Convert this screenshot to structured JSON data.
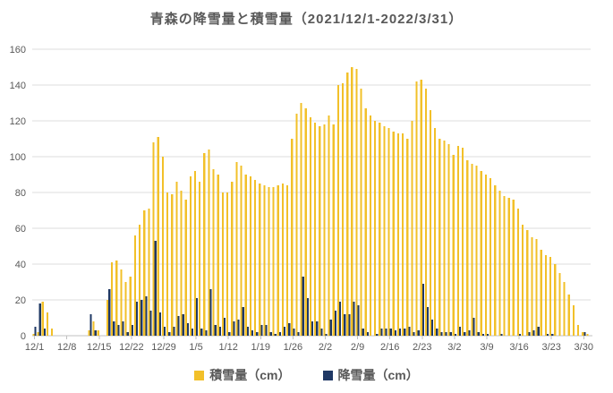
{
  "title": "青森の降雪量と積雪量（2021/12/1-2022/3/31）",
  "colors": {
    "depth": "#F2C029",
    "snowfall": "#1F3864",
    "grid": "#DCDCDC",
    "axis": "#C0C0C0",
    "tick_text": "#595959",
    "title_text": "#595959"
  },
  "legend": {
    "depth_label": "積雪量（cm）",
    "snowfall_label": "降雪量（cm）"
  },
  "chart_data": {
    "type": "bar",
    "title": "青森の降雪量と積雪量（2021/12/1-2022/3/31）",
    "xlabel": "",
    "ylabel": "",
    "ylim": [
      0,
      160
    ],
    "y_ticks": [
      0,
      20,
      40,
      60,
      80,
      100,
      120,
      140,
      160
    ],
    "grid": true,
    "legend_position": "bottom",
    "x_start": "2021/12/1",
    "x_end": "2022/3/31",
    "x_tick_interval_days": 7,
    "x_tick_labels": [
      "12/1",
      "12/8",
      "12/15",
      "12/22",
      "12/29",
      "1/5",
      "1/12",
      "1/19",
      "1/26",
      "2/2",
      "2/9",
      "2/16",
      "2/23",
      "3/2",
      "3/9",
      "3/16",
      "3/23",
      "3/30"
    ],
    "series": [
      {
        "name": "積雪量（cm）",
        "color": "#F2C029",
        "values": [
          1,
          2,
          19,
          13,
          4,
          0,
          0,
          0,
          0,
          0,
          0,
          0,
          3,
          8,
          3,
          0,
          20,
          41,
          42,
          37,
          30,
          33,
          56,
          62,
          70,
          71,
          108,
          111,
          100,
          80,
          79,
          86,
          81,
          76,
          89,
          92,
          86,
          102,
          104,
          93,
          90,
          80,
          80,
          86,
          97,
          95,
          90,
          89,
          87,
          85,
          84,
          83,
          83,
          84,
          85,
          84,
          110,
          124,
          130,
          127,
          122,
          119,
          117,
          118,
          123,
          118,
          140,
          141,
          147,
          150,
          149,
          138,
          127,
          123,
          120,
          119,
          117,
          116,
          114,
          113,
          113,
          110,
          120,
          142,
          143,
          138,
          126,
          116,
          110,
          109,
          107,
          101,
          106,
          105,
          98,
          96,
          95,
          92,
          90,
          88,
          84,
          81,
          78,
          77,
          76,
          71,
          62,
          59,
          55,
          54,
          48,
          45,
          44,
          40,
          35,
          30,
          23,
          17,
          6,
          2,
          1
        ]
      },
      {
        "name": "降雪量（cm）",
        "color": "#1F3864",
        "values": [
          5,
          18,
          4,
          0,
          0,
          0,
          0,
          0,
          0,
          0,
          0,
          0,
          12,
          3,
          0,
          0,
          26,
          8,
          6,
          8,
          2,
          6,
          19,
          20,
          22,
          14,
          53,
          13,
          5,
          2,
          5,
          11,
          12,
          7,
          4,
          21,
          4,
          3,
          26,
          6,
          5,
          10,
          2,
          8,
          9,
          16,
          5,
          3,
          2,
          6,
          6,
          2,
          1,
          2,
          5,
          7,
          4,
          2,
          33,
          21,
          8,
          8,
          4,
          1,
          9,
          14,
          19,
          12,
          12,
          19,
          17,
          4,
          2,
          0,
          1,
          4,
          4,
          4,
          3,
          4,
          4,
          5,
          2,
          3,
          29,
          16,
          9,
          4,
          2,
          2,
          2,
          1,
          5,
          2,
          3,
          10,
          2,
          1,
          1,
          0,
          0,
          1,
          0,
          0,
          0,
          1,
          0,
          2,
          3,
          5,
          0,
          1,
          1,
          0,
          0,
          0,
          0,
          0,
          0,
          2,
          0
        ]
      }
    ]
  }
}
